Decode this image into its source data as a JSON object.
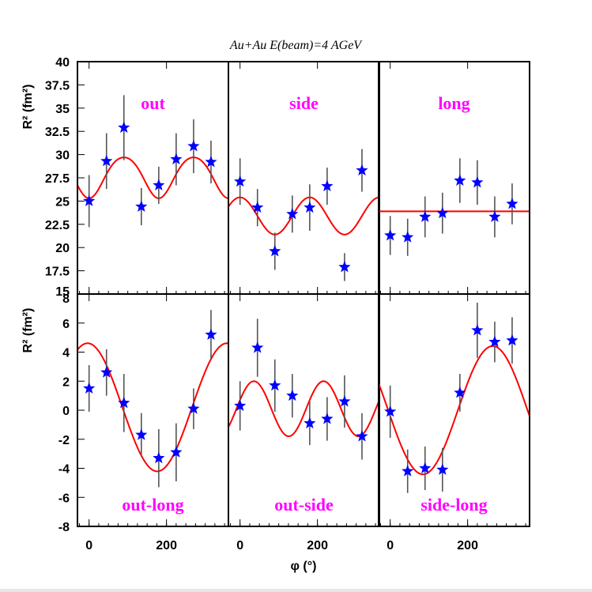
{
  "colors": {
    "fit": "#ff0000",
    "marker": "#0000ff",
    "errorbar": "#555555",
    "label": "#ff00ff",
    "frame": "#000000"
  },
  "chart_data": {
    "type": "scatter",
    "title": "Au+Au E(beam)=4 AGeV",
    "xlabel": "φ (°)",
    "top_ylabel": "R² (fm²)",
    "bottom_ylabel": "R² (fm²)",
    "xlim": [
      -30,
      360
    ],
    "x_ticks": [
      0,
      200
    ],
    "x_tick_labels": [
      "0",
      "200"
    ],
    "top_row": {
      "ylim": [
        15,
        40
      ],
      "y_ticks": [
        17.5,
        20,
        22.5,
        25,
        27.5,
        30,
        32.5,
        35,
        37.5,
        40
      ],
      "y_tick_labels": [
        "17.5",
        "20",
        "22.5",
        "25",
        "27.5",
        "30",
        "32.5",
        "35",
        "37.5",
        "40"
      ],
      "bottom_tick_label": "15"
    },
    "bottom_row": {
      "ylim": [
        -8,
        8
      ],
      "y_ticks": [
        -8,
        -6,
        -4,
        -2,
        0,
        2,
        4,
        6
      ],
      "y_tick_labels": [
        "-8",
        "-6",
        "-4",
        "-2",
        "0",
        "2",
        "4",
        "6"
      ],
      "top_tick_label": "8"
    },
    "panels": [
      {
        "label": "out",
        "row": 0,
        "col": 0,
        "points": [
          {
            "x": 0,
            "y": 25.0,
            "err": 2.8
          },
          {
            "x": 45,
            "y": 29.3,
            "err": 3.0
          },
          {
            "x": 90,
            "y": 32.9,
            "err": 3.5
          },
          {
            "x": 135,
            "y": 24.4,
            "err": 2.0
          },
          {
            "x": 180,
            "y": 26.7,
            "err": 2.0
          },
          {
            "x": 225,
            "y": 29.5,
            "err": 2.8
          },
          {
            "x": 270,
            "y": 30.9,
            "err": 2.9
          },
          {
            "x": 315,
            "y": 29.2,
            "err": 2.3
          }
        ],
        "fit": {
          "type": "sinusoid",
          "p0": 27.7,
          "p2": -2.2,
          "p4": -0.2
        }
      },
      {
        "label": "side",
        "row": 0,
        "col": 1,
        "points": [
          {
            "x": 0,
            "y": 27.1,
            "err": 2.5
          },
          {
            "x": 45,
            "y": 24.3,
            "err": 2.0
          },
          {
            "x": 90,
            "y": 19.6,
            "err": 2.0
          },
          {
            "x": 135,
            "y": 23.6,
            "err": 2.0
          },
          {
            "x": 180,
            "y": 24.3,
            "err": 2.5
          },
          {
            "x": 225,
            "y": 26.6,
            "err": 2.0
          },
          {
            "x": 270,
            "y": 17.9,
            "err": 1.5
          },
          {
            "x": 315,
            "y": 28.3,
            "err": 2.3
          }
        ],
        "fit": {
          "type": "sinusoid",
          "p0": 23.4,
          "p2": 2.0,
          "p4": 0
        }
      },
      {
        "label": "long",
        "row": 0,
        "col": 2,
        "points": [
          {
            "x": 0,
            "y": 21.3,
            "err": 2.1
          },
          {
            "x": 45,
            "y": 21.1,
            "err": 2.0
          },
          {
            "x": 90,
            "y": 23.3,
            "err": 2.2
          },
          {
            "x": 135,
            "y": 23.7,
            "err": 2.2
          },
          {
            "x": 180,
            "y": 27.2,
            "err": 2.4
          },
          {
            "x": 225,
            "y": 27.0,
            "err": 2.4
          },
          {
            "x": 270,
            "y": 23.3,
            "err": 2.2
          },
          {
            "x": 315,
            "y": 24.7,
            "err": 2.2
          }
        ],
        "fit": {
          "type": "sinusoid",
          "p0": 23.9,
          "p2": 0,
          "p4": 0
        }
      },
      {
        "label": "out-long",
        "row": 1,
        "col": 0,
        "points": [
          {
            "x": 0,
            "y": 1.5,
            "err": 1.6
          },
          {
            "x": 45,
            "y": 2.6,
            "err": 1.6
          },
          {
            "x": 90,
            "y": 0.5,
            "err": 2.0
          },
          {
            "x": 135,
            "y": -1.7,
            "err": 1.5
          },
          {
            "x": 180,
            "y": -3.3,
            "err": 2.0
          },
          {
            "x": 225,
            "y": -2.9,
            "err": 2.0
          },
          {
            "x": 270,
            "y": 0.1,
            "err": 1.4
          },
          {
            "x": 315,
            "y": 5.2,
            "err": 1.7
          }
        ],
        "fit": {
          "type": "cosine1",
          "p0": 0.2,
          "a": 4.4,
          "s": -0.3
        }
      },
      {
        "label": "out-side",
        "row": 1,
        "col": 1,
        "points": [
          {
            "x": 0,
            "y": 0.3,
            "err": 1.7
          },
          {
            "x": 45,
            "y": 4.3,
            "err": 2.0
          },
          {
            "x": 90,
            "y": 1.7,
            "err": 1.8
          },
          {
            "x": 135,
            "y": 1.0,
            "err": 1.5
          },
          {
            "x": 180,
            "y": -0.9,
            "err": 1.5
          },
          {
            "x": 225,
            "y": -0.6,
            "err": 1.5
          },
          {
            "x": 270,
            "y": 0.6,
            "err": 1.8
          },
          {
            "x": 315,
            "y": -1.8,
            "err": 1.6
          }
        ],
        "fit": {
          "type": "sinusoid2",
          "p0": 0.1,
          "b": 1.8,
          "s": 0.6
        }
      },
      {
        "label": "side-long",
        "row": 1,
        "col": 2,
        "points": [
          {
            "x": 0,
            "y": -0.1,
            "err": 1.8
          },
          {
            "x": 45,
            "y": -4.2,
            "err": 1.5
          },
          {
            "x": 90,
            "y": -4.0,
            "err": 1.5
          },
          {
            "x": 135,
            "y": -4.1,
            "err": 1.5
          },
          {
            "x": 180,
            "y": 1.2,
            "err": 1.3
          },
          {
            "x": 225,
            "y": 5.5,
            "err": 1.9
          },
          {
            "x": 270,
            "y": 4.7,
            "err": 1.4
          },
          {
            "x": 315,
            "y": 4.8,
            "err": 1.6
          }
        ],
        "fit": {
          "type": "cosine1",
          "p0": 0,
          "a": -0.4,
          "s": -4.4
        }
      }
    ],
    "grid": false,
    "legend": "none"
  }
}
